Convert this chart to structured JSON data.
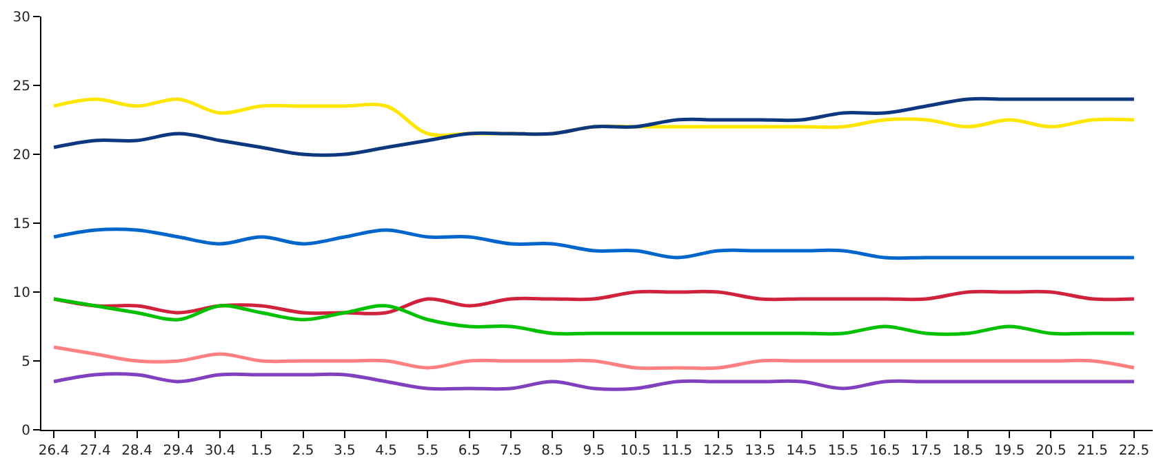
{
  "chart_data": {
    "type": "line",
    "categories": [
      "26.4",
      "27.4",
      "28.4",
      "29.4",
      "30.4",
      "1.5",
      "2.5",
      "3.5",
      "4.5",
      "5.5",
      "6.5",
      "7.5",
      "8.5",
      "9.5",
      "10.5",
      "11.5",
      "12.5",
      "13.5",
      "14.5",
      "15.5",
      "16.5",
      "17.5",
      "18.5",
      "19.5",
      "20.5",
      "21.5",
      "22.5"
    ],
    "ylim": [
      0,
      30
    ],
    "yticks": [
      0,
      5,
      10,
      15,
      20,
      25,
      30
    ],
    "marker": "none",
    "line_style": "solid",
    "series": [
      {
        "color": "#ffe600",
        "values": [
          23.5,
          24,
          23.5,
          24,
          23,
          23.5,
          23.5,
          23.5,
          23.5,
          21.5,
          21.5,
          21.5,
          21.5,
          22,
          22,
          22,
          22,
          22,
          22,
          22,
          22.5,
          22.5,
          22,
          22.5,
          22,
          22.5,
          22.5
        ]
      },
      {
        "color": "#0d3880",
        "values": [
          20.5,
          21,
          21,
          21.5,
          21,
          20.5,
          20,
          20,
          20.5,
          21,
          21.5,
          21.5,
          21.5,
          22,
          22,
          22.5,
          22.5,
          22.5,
          22.5,
          23,
          23,
          23.5,
          24,
          24,
          24,
          24,
          24
        ]
      },
      {
        "color": "#0066cc",
        "values": [
          14,
          14.5,
          14.5,
          14,
          13.5,
          14,
          13.5,
          14,
          14.5,
          14,
          14,
          13.5,
          13.5,
          13,
          13,
          12.5,
          13,
          13,
          13,
          13,
          12.5,
          12.5,
          12.5,
          12.5,
          12.5,
          12.5,
          12.5
        ]
      },
      {
        "color": "#d0223c",
        "values": [
          9.5,
          9,
          9,
          8.5,
          9,
          9,
          8.5,
          8.5,
          8.5,
          9.5,
          9,
          9.5,
          9.5,
          9.5,
          10,
          10,
          10,
          9.5,
          9.5,
          9.5,
          9.5,
          9.5,
          10,
          10,
          10,
          9.5,
          9.5
        ]
      },
      {
        "color": "#00c000",
        "values": [
          9.5,
          9,
          8.5,
          8,
          9,
          8.5,
          8,
          8.5,
          9,
          8,
          7.5,
          7.5,
          7,
          7,
          7,
          7,
          7,
          7,
          7,
          7,
          7.5,
          7,
          7,
          7.5,
          7,
          7,
          7
        ]
      },
      {
        "color": "#ff8080",
        "values": [
          6,
          5.5,
          5,
          5,
          5.5,
          5,
          5,
          5,
          5,
          4.5,
          5,
          5,
          5,
          5,
          4.5,
          4.5,
          4.5,
          5,
          5,
          5,
          5,
          5,
          5,
          5,
          5,
          5,
          4.5
        ]
      },
      {
        "color": "#8040c0",
        "values": [
          3.5,
          4,
          4,
          3.5,
          4,
          4,
          4,
          4,
          3.5,
          3,
          3,
          3,
          3.5,
          3,
          3,
          3.5,
          3.5,
          3.5,
          3.5,
          3,
          3.5,
          3.5,
          3.5,
          3.5,
          3.5,
          3.5,
          3.5
        ]
      }
    ]
  }
}
